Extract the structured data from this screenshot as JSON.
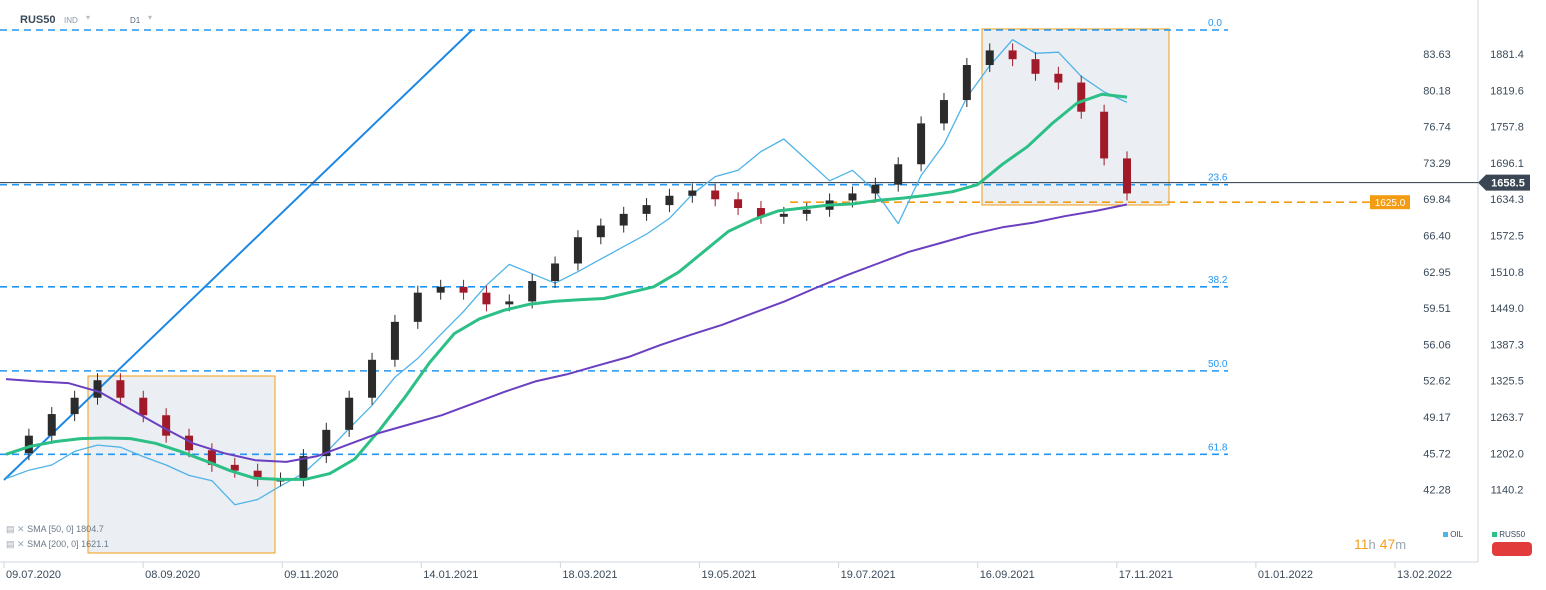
{
  "header": {
    "symbol": "RUS50",
    "type": "IND",
    "timeframe": "D1"
  },
  "indicators": [
    {
      "label": "SMA",
      "params": "[50, 0]",
      "value": "1804.7",
      "color": "#2cbf86"
    },
    {
      "label": "SMA",
      "params": "[200, 0]",
      "value": "1621.1",
      "color": "#6a3fc0"
    }
  ],
  "timer": {
    "hours": "11",
    "h": "h",
    "minutes": "47",
    "m": "m"
  },
  "legend_keys": {
    "oil": "OIL",
    "rus50": "RUS50"
  },
  "colors": {
    "oil": "#4fb3e8",
    "sma50": "#2cbf86",
    "sma200": "#6a3fc0",
    "fib": "#2196f3",
    "bull": "#2b2b2b",
    "bear": "#a01a2a",
    "accent": "#f39c12"
  },
  "chart_data": {
    "type": "line",
    "x_labels": [
      "09.07.2020",
      "08.09.2020",
      "09.11.2020",
      "14.01.2021",
      "18.03.2021",
      "19.05.2021",
      "19.07.2021",
      "16.09.2021",
      "17.11.2021",
      "01.01.2022",
      "13.02.2022"
    ],
    "right_axis": {
      "ticks": [
        "1881.4",
        "1819.6",
        "1757.8",
        "1696.1",
        "1634.3",
        "1572.5",
        "1510.8",
        "1449.0",
        "1387.3",
        "1325.5",
        "1263.7",
        "1202.0",
        "1140.2"
      ]
    },
    "left_axis": {
      "ticks": [
        "83.63",
        "80.18",
        "76.74",
        "73.29",
        "69.84",
        "66.40",
        "62.95",
        "59.51",
        "56.06",
        "52.62",
        "49.17",
        "45.72",
        "42.28"
      ]
    },
    "current_price": "1658.5",
    "support_level": "1625.0",
    "fib_levels": [
      {
        "label": "0.0",
        "value": 1920
      },
      {
        "label": "23.6",
        "value": 1655
      },
      {
        "label": "38.2",
        "value": 1480
      },
      {
        "label": "50.0",
        "value": 1336
      },
      {
        "label": "61.8",
        "value": 1193
      }
    ],
    "series": [
      {
        "name": "RUS50",
        "values": [
          1195,
          1225,
          1262,
          1290,
          1320,
          1290,
          1260,
          1225,
          1200,
          1175,
          1165,
          1150,
          1150,
          1190,
          1235,
          1290,
          1355,
          1420,
          1470,
          1480,
          1470,
          1450,
          1455,
          1490,
          1520,
          1565,
          1585,
          1605,
          1620,
          1636,
          1645,
          1630,
          1615,
          1600,
          1605,
          1612,
          1628,
          1640,
          1655,
          1690,
          1760,
          1800,
          1860,
          1885,
          1870,
          1845,
          1830,
          1780,
          1700,
          1640
        ]
      },
      {
        "name": "OIL",
        "values": [
          43,
          43.8,
          44.3,
          45.6,
          46.2,
          46,
          45.1,
          44.3,
          43.3,
          42.8,
          40.5,
          41,
          42.3,
          43.5,
          45.5,
          47.8,
          50,
          52.7,
          54.5,
          56.8,
          59,
          61.5,
          63.5,
          62.6,
          61.7,
          62.8,
          64,
          65.2,
          66.4,
          67.9,
          70.2,
          71.9,
          72.5,
          74.3,
          75.5,
          73.5,
          71.5,
          72.5,
          70.5,
          67.4,
          72,
          75,
          79.5,
          82.5,
          85,
          83.7,
          83.8,
          81.5,
          80,
          79
        ]
      },
      {
        "name": "SMA 50",
        "values": [
          1193,
          1207,
          1215,
          1220,
          1221,
          1220,
          1212,
          1198,
          1182,
          1165,
          1152,
          1150,
          1150,
          1160,
          1185,
          1235,
          1290,
          1350,
          1400,
          1425,
          1440,
          1450,
          1455,
          1458,
          1460,
          1470,
          1480,
          1505,
          1540,
          1575,
          1595,
          1610,
          1615,
          1620,
          1622,
          1628,
          1632,
          1637,
          1643,
          1655,
          1690,
          1720,
          1760,
          1795,
          1810,
          1805
        ]
      },
      {
        "name": "SMA 200",
        "values": [
          1322,
          1318,
          1315,
          1300,
          1270,
          1240,
          1212,
          1195,
          1183,
          1180,
          1190,
          1210,
          1230,
          1245,
          1260,
          1280,
          1300,
          1318,
          1330,
          1345,
          1360,
          1380,
          1398,
          1415,
          1435,
          1455,
          1478,
          1500,
          1520,
          1540,
          1555,
          1570,
          1582,
          1590,
          1601,
          1610,
          1621
        ]
      }
    ]
  }
}
